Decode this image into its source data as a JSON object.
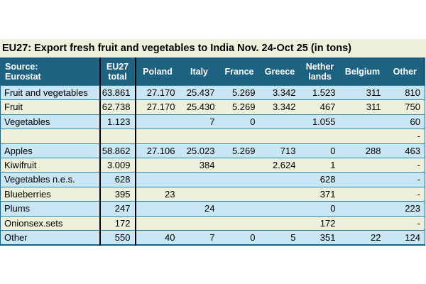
{
  "title": "EU27: Export fresh fruit and vegetables to India Nov. 24-Oct 25 (in tons)",
  "colors": {
    "header_bg": "#1e6282",
    "header_text": "#ffffff",
    "row_light_blue": "#c9e6f4",
    "row_cream": "#eff0dc",
    "title_bar_bg": "#eff0dc",
    "row_divider": "#2e86ad",
    "column_rule_black": "#000000"
  },
  "table_display": {
    "source_header": "Source:\nEurostat",
    "column_headers": [
      "EU27\ntotal",
      "Poland",
      "Italy",
      "France",
      "Greece",
      "Nether\nlands",
      "Belgium",
      "Other"
    ]
  },
  "chart_data": {
    "type": "table",
    "title": "EU27: Export fresh fruit and vegetables to India Nov. 24-Oct 25 (in tons)",
    "source_note": "Source: Eurostat",
    "unit": "tons",
    "columns": [
      "EU27 total",
      "Poland",
      "Italy",
      "France",
      "Greece",
      "Netherlands",
      "Belgium",
      "Other"
    ],
    "rows": [
      {
        "label": "Fruit and vegetables",
        "values": [
          "63.861",
          "27.170",
          "25.437",
          "5.269",
          "3.342",
          "1.523",
          "311",
          "810"
        ]
      },
      {
        "label": "Fruit",
        "values": [
          "62.738",
          "27.170",
          "25.430",
          "5.269",
          "3.342",
          "467",
          "311",
          "750"
        ]
      },
      {
        "label": "Vegetables",
        "values": [
          "1.123",
          "",
          "7",
          "0",
          "",
          "1.055",
          "",
          "60"
        ]
      },
      {
        "label": "",
        "values": [
          "",
          "",
          "",
          "",
          "",
          "",
          "",
          "-"
        ]
      },
      {
        "label": "Apples",
        "values": [
          "58.862",
          "27.106",
          "25.023",
          "5.269",
          "713",
          "0",
          "288",
          "463"
        ]
      },
      {
        "label": "Kiwifruit",
        "values": [
          "3.009",
          "",
          "384",
          "",
          "2.624",
          "1",
          "",
          "-"
        ]
      },
      {
        "label": "Vegetables n.e.s.",
        "values": [
          "628",
          "",
          "",
          "",
          "",
          "628",
          "",
          "-"
        ]
      },
      {
        "label": "Blueberries",
        "values": [
          "395",
          "23",
          "",
          "",
          "",
          "371",
          "",
          "-"
        ]
      },
      {
        "label": "Plums",
        "values": [
          "247",
          "",
          "24",
          "",
          "",
          "0",
          "",
          "223"
        ]
      },
      {
        "label": "Onionsex.sets",
        "values": [
          "172",
          "",
          "",
          "",
          "",
          "172",
          "",
          "-"
        ]
      },
      {
        "label": "Other",
        "values": [
          "550",
          "40",
          "7",
          "0",
          "5",
          "351",
          "22",
          "124"
        ]
      }
    ]
  }
}
